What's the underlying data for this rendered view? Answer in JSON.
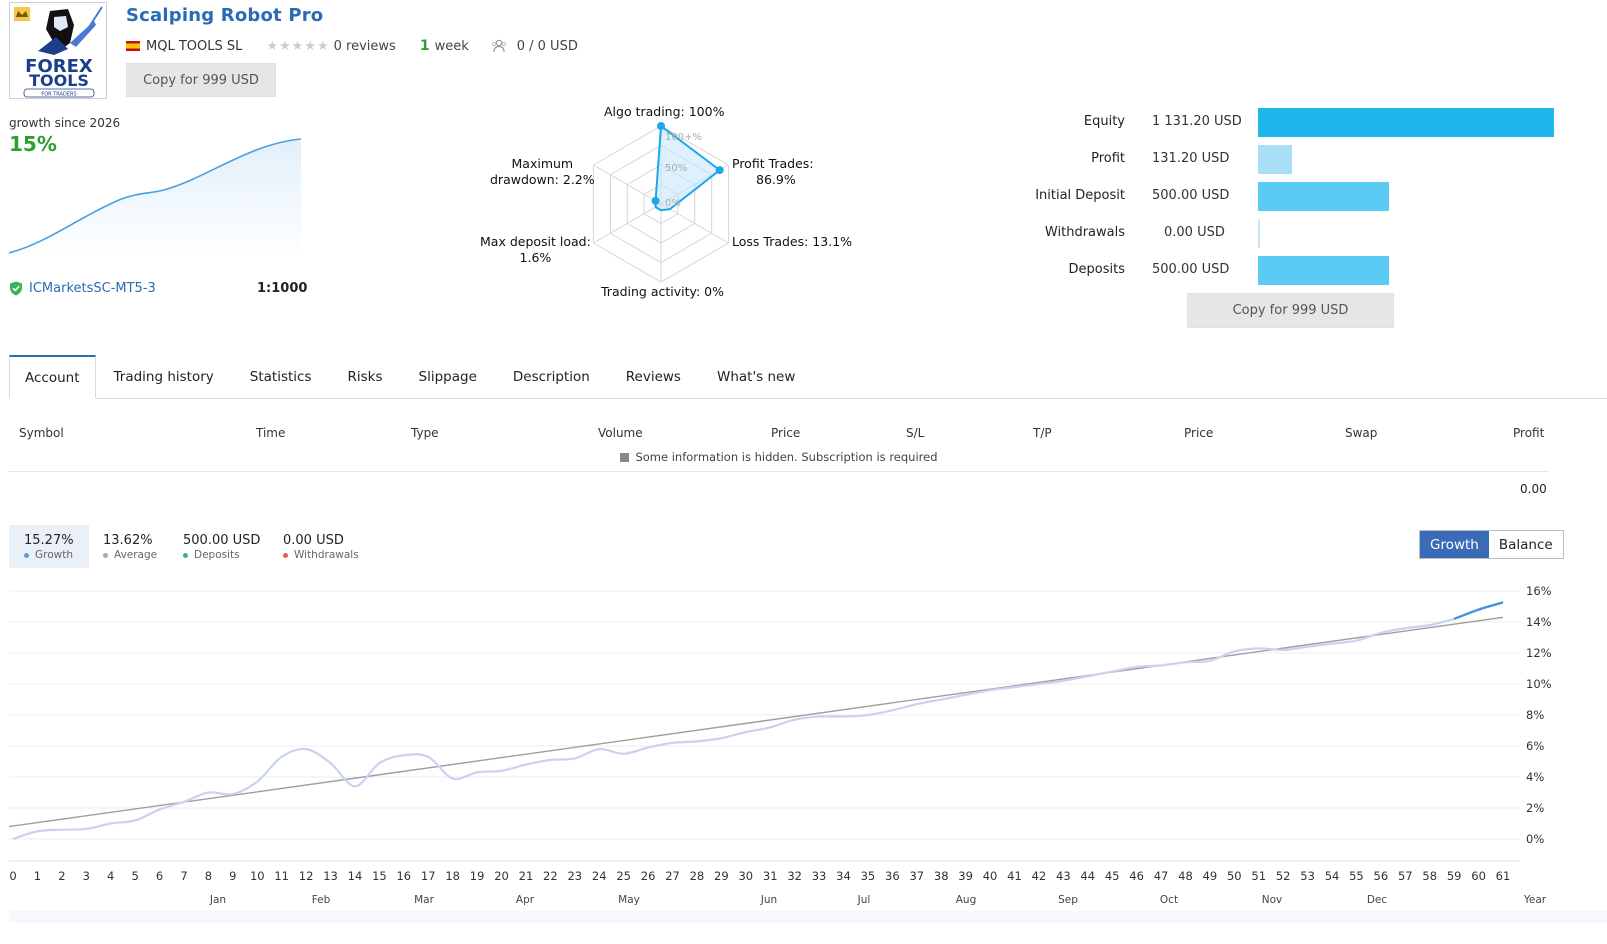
{
  "header": {
    "logo_lines": [
      "FOREX",
      "TOOLS",
      "FOR TRADERS"
    ],
    "title": "Scalping Robot Pro",
    "author": "MQL TOOLS SL",
    "stars": "★★★★★",
    "reviews": "0 reviews",
    "age_number": "1",
    "age_unit": "week",
    "subscribers": "0 / 0 USD",
    "copy_button": "Copy for 999 USD"
  },
  "growth_summary": {
    "label": "growth since 2026",
    "value": "15%",
    "broker": "ICMarketsSC-MT5-3",
    "leverage": "1:1000"
  },
  "radar": {
    "labels": {
      "algo": "Algo trading: 100%",
      "profit_trades_1": "Profit Trades:",
      "profit_trades_2": "86.9%",
      "loss_trades": "Loss Trades: 13.1%",
      "trading_activity": "Trading activity: 0%",
      "max_deposit_load_1": "Max deposit load:",
      "max_deposit_load_2": "1.6%",
      "max_drawdown_1": "Maximum",
      "max_drawdown_2": "drawdown: 2.2%"
    },
    "scale_labels": [
      "100+%",
      "50%",
      "0%"
    ],
    "values": {
      "algo_trading": 100,
      "profit_trades": 86.9,
      "loss_trades": 13.1,
      "trading_activity": 0,
      "max_deposit_load": 1.6,
      "max_drawdown": 2.2
    }
  },
  "equity_panel": {
    "rows": [
      {
        "label": "Equity",
        "value": "1 131.20 USD",
        "amount": 1131.2,
        "color": "#1fb5ec"
      },
      {
        "label": "Profit",
        "value": "131.20 USD",
        "amount": 131.2,
        "color": "#a8def6"
      },
      {
        "label": "Initial Deposit",
        "value": "500.00 USD",
        "amount": 500.0,
        "color": "#5ccbf3"
      },
      {
        "label": "Withdrawals",
        "value": "0.00 USD",
        "amount": 0,
        "color": "#5ccbf3"
      },
      {
        "label": "Deposits",
        "value": "500.00 USD",
        "amount": 500.0,
        "color": "#5ccbf3"
      }
    ],
    "copy_button": "Copy for 999 USD"
  },
  "tabs": [
    {
      "label": "Account",
      "active": true
    },
    {
      "label": "Trading history"
    },
    {
      "label": "Statistics"
    },
    {
      "label": "Risks"
    },
    {
      "label": "Slippage"
    },
    {
      "label": "Description"
    },
    {
      "label": "Reviews"
    },
    {
      "label": "What's new"
    }
  ],
  "table": {
    "columns": [
      "Symbol",
      "Time",
      "Type",
      "Volume",
      "Price",
      "S/L",
      "T/P",
      "Price",
      "Swap",
      "Profit"
    ],
    "hidden_message": "Some information is hidden. Subscription is required",
    "total_profit": "0.00"
  },
  "stats": [
    {
      "value": "15.27%",
      "label": "Growth",
      "color": "#5b9bd5",
      "active": true
    },
    {
      "value": "13.62%",
      "label": "Average",
      "color": "#aaaaaa"
    },
    {
      "value": "500.00 USD",
      "label": "Deposits",
      "color": "#3cb371"
    },
    {
      "value": "0.00 USD",
      "label": "Withdrawals",
      "color": "#e8604c"
    }
  ],
  "chart_switch": {
    "growth": "Growth",
    "balance": "Balance"
  },
  "chart_data": {
    "type": "line",
    "ylim": [
      -1,
      16.5
    ],
    "y_ticks": [
      "16%",
      "14%",
      "12%",
      "10%",
      "8%",
      "6%",
      "4%",
      "2%",
      "0%"
    ],
    "x_ticks": [
      "0",
      "1",
      "2",
      "3",
      "4",
      "5",
      "6",
      "7",
      "8",
      "9",
      "10",
      "11",
      "12",
      "13",
      "14",
      "15",
      "16",
      "17",
      "18",
      "19",
      "20",
      "21",
      "22",
      "23",
      "24",
      "25",
      "26",
      "27",
      "28",
      "29",
      "30",
      "31",
      "32",
      "33",
      "34",
      "35",
      "36",
      "37",
      "38",
      "39",
      "40",
      "41",
      "42",
      "43",
      "44",
      "45",
      "46",
      "47",
      "48",
      "49",
      "50",
      "51",
      "52",
      "53",
      "54",
      "55",
      "56",
      "57",
      "58",
      "59",
      "60",
      "61"
    ],
    "month_labels": [
      "Jan",
      "Feb",
      "Mar",
      "Apr",
      "May",
      "Jun",
      "Jul",
      "Aug",
      "Sep",
      "Oct",
      "Nov",
      "Dec"
    ],
    "year_label": "Year",
    "series": [
      {
        "values": [
          0.0,
          0.5,
          0.6,
          0.65,
          1.0,
          1.2,
          1.9,
          2.4,
          3.0,
          2.9,
          3.7,
          5.3,
          5.8,
          4.9,
          3.4,
          4.9,
          5.4,
          5.3,
          3.9,
          4.3,
          4.4,
          4.8,
          5.1,
          5.2,
          5.8,
          5.5,
          5.9,
          6.2,
          6.3,
          6.5,
          6.9,
          7.2,
          7.7,
          7.9,
          7.9,
          8.0,
          8.3,
          8.7,
          9.0,
          9.3,
          9.6,
          9.8,
          10.0,
          10.2,
          10.5,
          10.8,
          11.1,
          11.2,
          11.4,
          11.5,
          12.1,
          12.3,
          12.2,
          12.4,
          12.6,
          12.8,
          13.3,
          13.6,
          13.8,
          14.2,
          14.8,
          15.27
        ]
      },
      {
        "values": [
          0.8,
          14.3
        ]
      }
    ],
    "colors": {
      "growth": "#c9d3f0",
      "growth_recent": "#4a90e2",
      "trend": "#9e9e9e"
    }
  }
}
